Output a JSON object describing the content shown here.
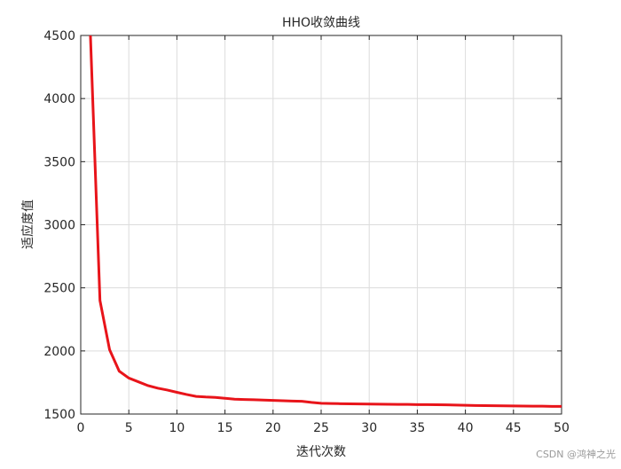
{
  "chart_data": {
    "type": "line",
    "title": "HHO收敛曲线",
    "xlabel": "迭代次数",
    "ylabel": "适应度值",
    "watermark": "CSDN @鸿神之光",
    "x": [
      1,
      2,
      3,
      4,
      5,
      6,
      7,
      8,
      9,
      10,
      11,
      12,
      13,
      14,
      15,
      16,
      17,
      18,
      19,
      20,
      21,
      22,
      23,
      24,
      25,
      26,
      27,
      28,
      29,
      30,
      31,
      32,
      33,
      34,
      35,
      36,
      37,
      38,
      39,
      40,
      41,
      42,
      43,
      44,
      45,
      46,
      47,
      48,
      49,
      50
    ],
    "series": [
      {
        "name": "HHO",
        "color": "#e8141a",
        "values": [
          4520,
          2400,
          2010,
          1840,
          1785,
          1755,
          1725,
          1705,
          1690,
          1672,
          1655,
          1640,
          1635,
          1632,
          1625,
          1618,
          1615,
          1613,
          1611,
          1608,
          1605,
          1603,
          1601,
          1592,
          1585,
          1583,
          1582,
          1581,
          1580,
          1579,
          1578,
          1577,
          1576,
          1576,
          1575,
          1575,
          1574,
          1573,
          1571,
          1569,
          1568,
          1567,
          1566,
          1565,
          1564,
          1563,
          1562,
          1562,
          1561,
          1561
        ]
      }
    ],
    "xlim": [
      0,
      50
    ],
    "xticks": [
      0,
      5,
      10,
      15,
      20,
      25,
      30,
      35,
      40,
      45,
      50
    ],
    "ylim": [
      1500,
      4500
    ],
    "yticks": [
      1500,
      2000,
      2500,
      3000,
      3500,
      4000,
      4500
    ],
    "grid": true
  }
}
